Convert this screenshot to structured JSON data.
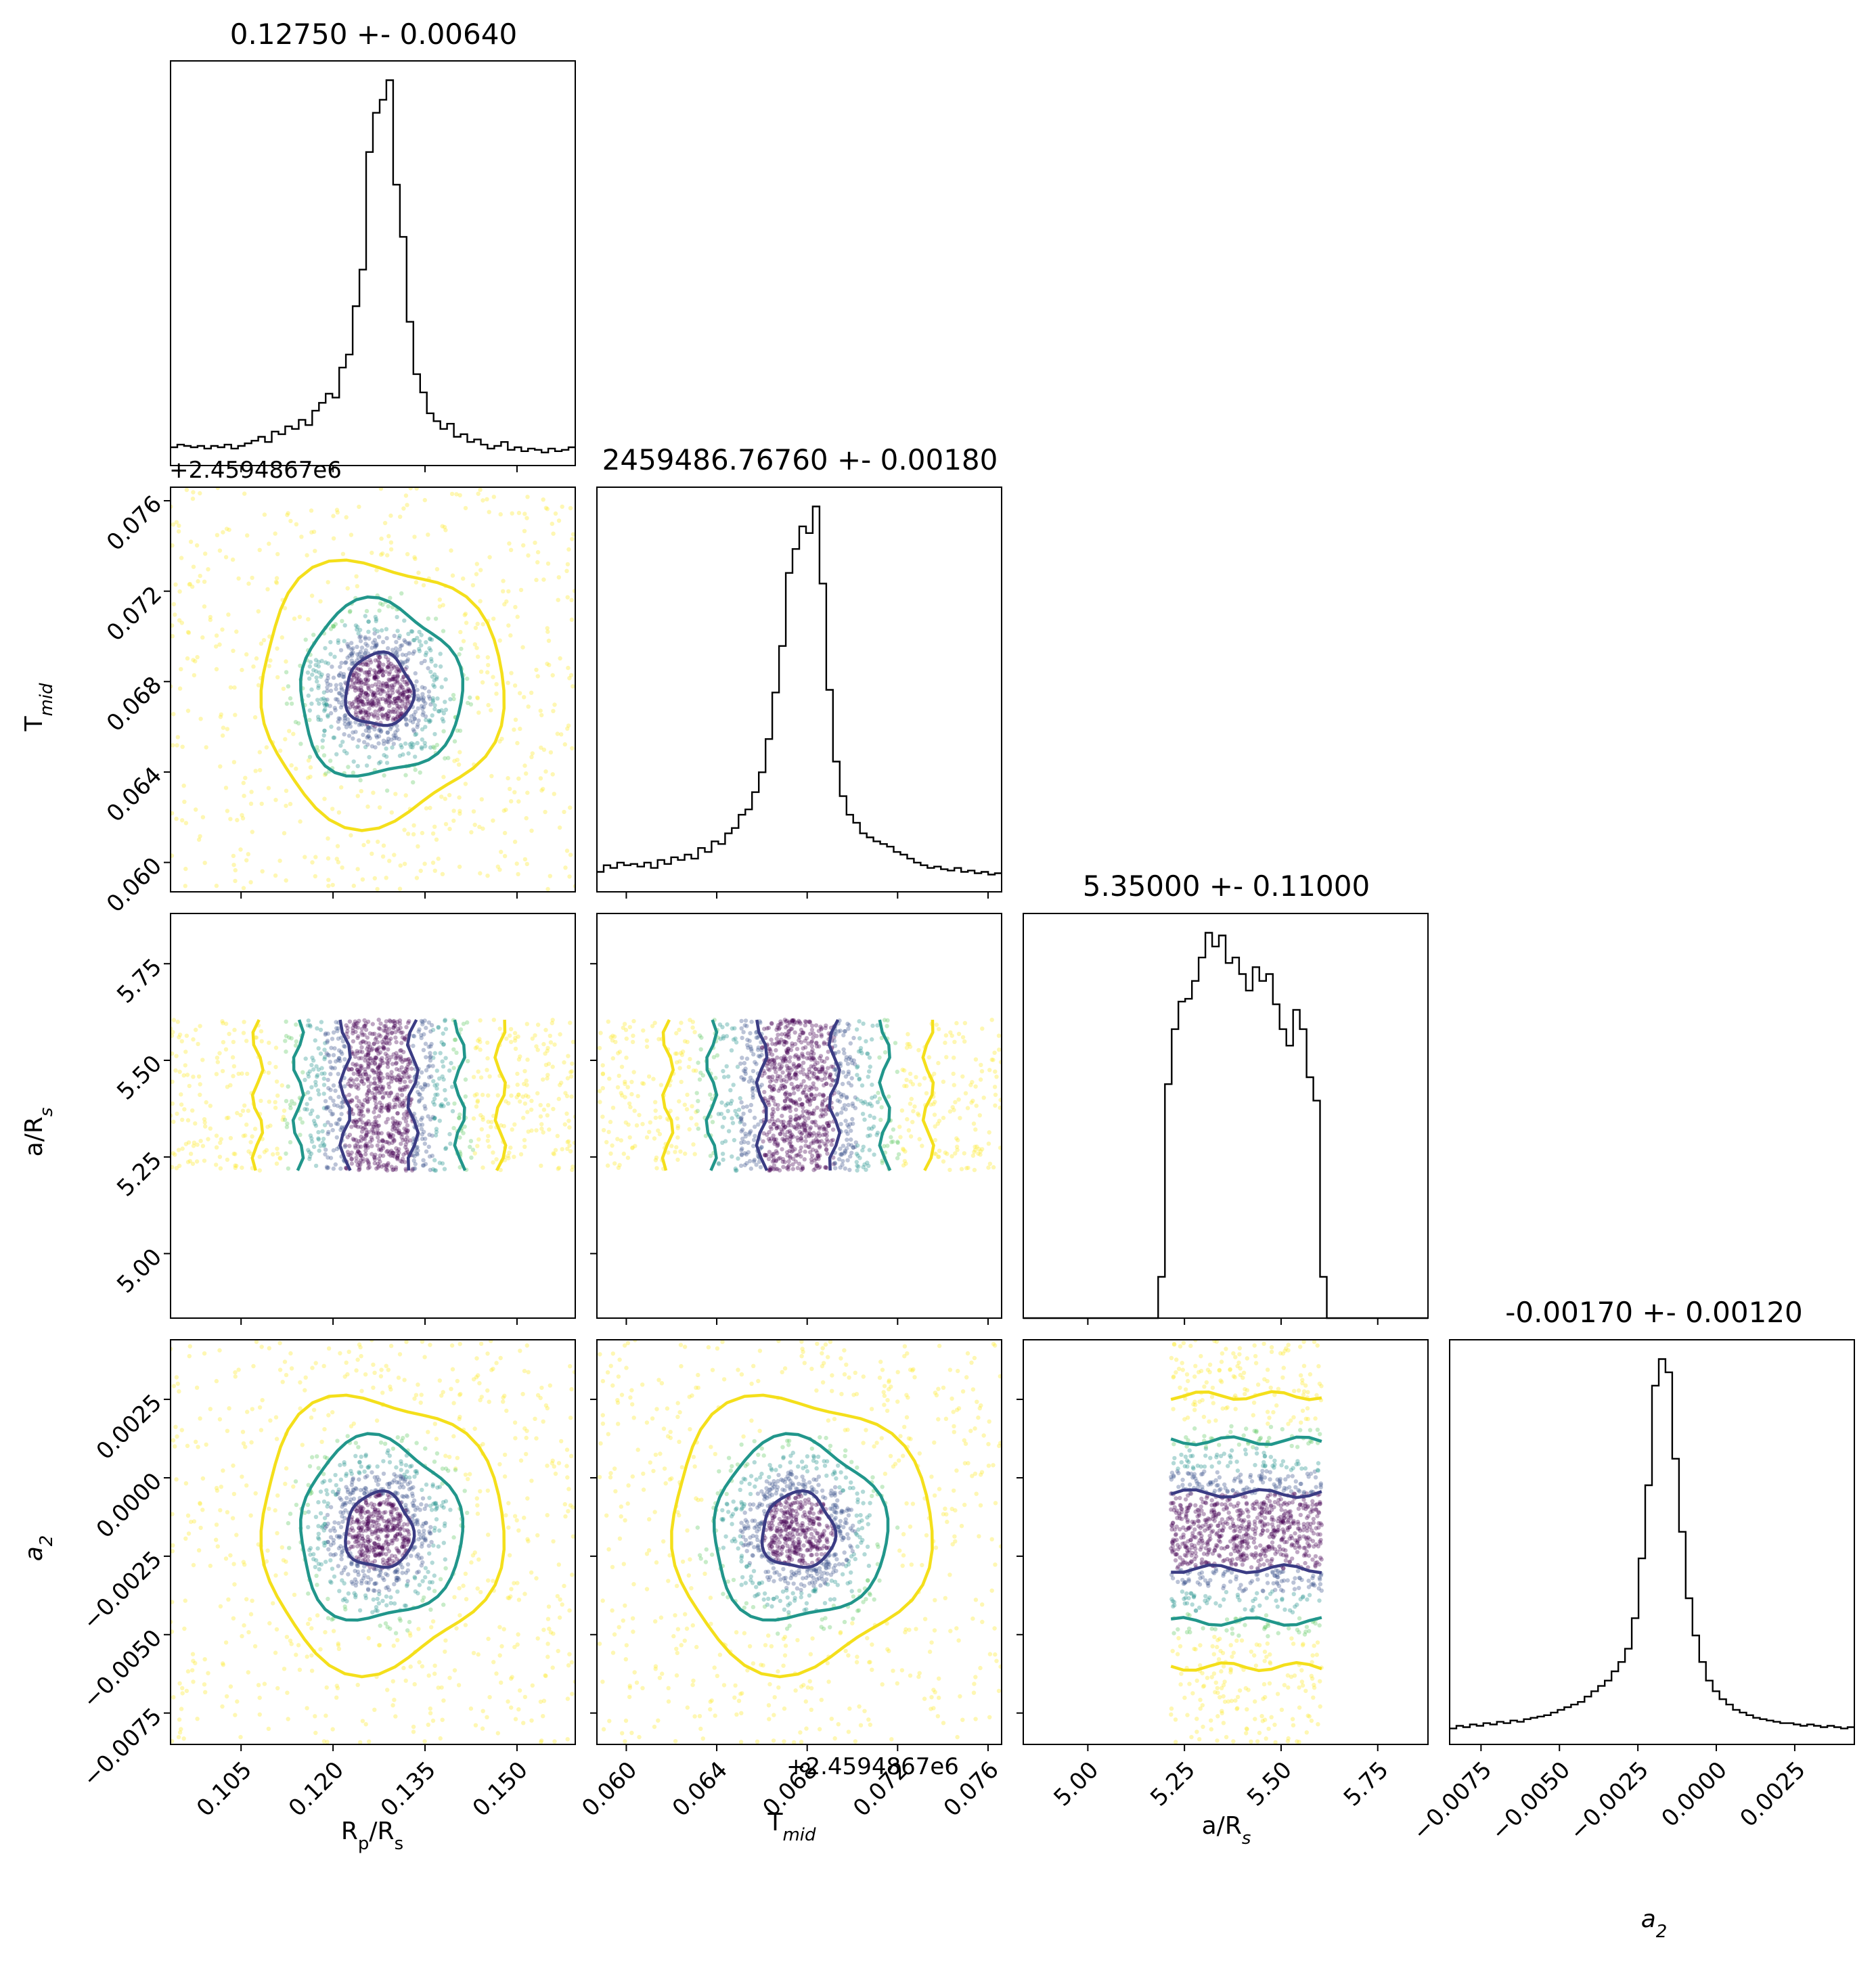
{
  "chart_data": {
    "type": "corner",
    "params": [
      {
        "key": "rp",
        "label": "R_p/R_s",
        "range": [
          0.0935,
          0.1595
        ],
        "ticks": [
          "0.105",
          "0.120",
          "0.135",
          "0.150"
        ],
        "tick_values": [
          0.105,
          0.12,
          0.135,
          0.15
        ]
      },
      {
        "key": "tmid",
        "label": "T_mid",
        "range": [
          0.0587,
          0.0766
        ],
        "ticks": [
          "0.060",
          "0.064",
          "0.068",
          "0.072",
          "0.076"
        ],
        "tick_values": [
          0.06,
          0.064,
          0.068,
          0.072,
          0.076
        ]
      },
      {
        "key": "ars",
        "label": "a/R_s",
        "range": [
          4.833,
          5.88
        ],
        "ticks": [
          "5.00",
          "5.25",
          "5.50",
          "5.75"
        ],
        "tick_values": [
          5.0,
          5.25,
          5.5,
          5.75
        ]
      },
      {
        "key": "a2",
        "label": "a_2",
        "range": [
          -0.0085,
          0.0044
        ],
        "ticks": [
          "−0.0075",
          "−0.0050",
          "−0.0025",
          "0.0000",
          "0.0025"
        ],
        "tick_values": [
          -0.0075,
          -0.005,
          -0.0025,
          0.0,
          0.0025
        ]
      }
    ],
    "titles": [
      "0.12750 +- 0.00640",
      "2459486.76760 +- 0.00180",
      "5.35000 +- 0.11000",
      "-0.00170 +- 0.00120"
    ],
    "axis_labels": {
      "rp": "R",
      "rp_sub": "p",
      "rp_rest": "/R",
      "rp_sub2": "s",
      "tmid": "T",
      "tmid_sub": "mid",
      "ars": "a/R",
      "ars_sub": "s",
      "a2": "a",
      "a2_sub": "2"
    },
    "offset_text": "+2.4594867e6",
    "histograms": [
      {
        "param": "rp",
        "center": 0.1275,
        "peak_count": 295,
        "baseline_count": 14,
        "counts": [
          14,
          16,
          15,
          14,
          15,
          13,
          15,
          14,
          16,
          13,
          15,
          17,
          19,
          22,
          18,
          26,
          24,
          30,
          28,
          35,
          31,
          42,
          48,
          55,
          52,
          75,
          85,
          122,
          150,
          240,
          270,
          280,
          295,
          215,
          175,
          110,
          70,
          56,
          40,
          34,
          28,
          32,
          22,
          24,
          18,
          20,
          16,
          13,
          15,
          18,
          12,
          14,
          11,
          13,
          12,
          10,
          13,
          11,
          12,
          14
        ]
      },
      {
        "param": "tmid",
        "center": 0.0676,
        "peak_count": 290,
        "baseline_count": 20,
        "counts": [
          15,
          20,
          18,
          22,
          20,
          21,
          19,
          22,
          18,
          24,
          21,
          26,
          24,
          28,
          25,
          33,
          30,
          38,
          36,
          44,
          48,
          58,
          62,
          75,
          90,
          115,
          150,
          185,
          240,
          258,
          275,
          270,
          290,
          232,
          152,
          98,
          72,
          58,
          52,
          44,
          41,
          38,
          36,
          34,
          30,
          28,
          25,
          22,
          20,
          18,
          19,
          17,
          16,
          18,
          15,
          16,
          14,
          15,
          13,
          14
        ]
      },
      {
        "param": "ars",
        "center": 5.35,
        "peak_count": 280,
        "baseline_count": 0,
        "counts": [
          0,
          0,
          0,
          0,
          0,
          0,
          0,
          0,
          0,
          0,
          0,
          0,
          0,
          0,
          0,
          0,
          0,
          0,
          0,
          0,
          30,
          170,
          210,
          230,
          232,
          245,
          262,
          280,
          270,
          278,
          258,
          262,
          250,
          238,
          255,
          245,
          250,
          228,
          210,
          198,
          224,
          210,
          175,
          158,
          30,
          0,
          0,
          0,
          0,
          0,
          0,
          0,
          0,
          0,
          0,
          0,
          0,
          0,
          0,
          0
        ]
      },
      {
        "param": "a2",
        "center": -0.0017,
        "peak_count": 290,
        "baseline_count": 12,
        "counts": [
          12,
          14,
          13,
          15,
          14,
          16,
          15,
          17,
          16,
          18,
          17,
          19,
          20,
          21,
          22,
          24,
          26,
          28,
          30,
          32,
          36,
          40,
          44,
          48,
          55,
          62,
          72,
          95,
          140,
          195,
          270,
          290,
          280,
          215,
          160,
          110,
          82,
          62,
          48,
          40,
          34,
          30,
          26,
          24,
          22,
          20,
          19,
          18,
          17,
          16,
          16,
          15,
          14,
          15,
          14,
          13,
          14,
          13,
          12,
          13
        ]
      }
    ],
    "point_cloud_colormap": [
      "#440154",
      "#3b528b",
      "#21918c",
      "#5ec962",
      "#fde725"
    ],
    "contour_colors": {
      "inner": "#3b3c84",
      "middle": "#21968b",
      "outer": "#f4df1b"
    }
  }
}
